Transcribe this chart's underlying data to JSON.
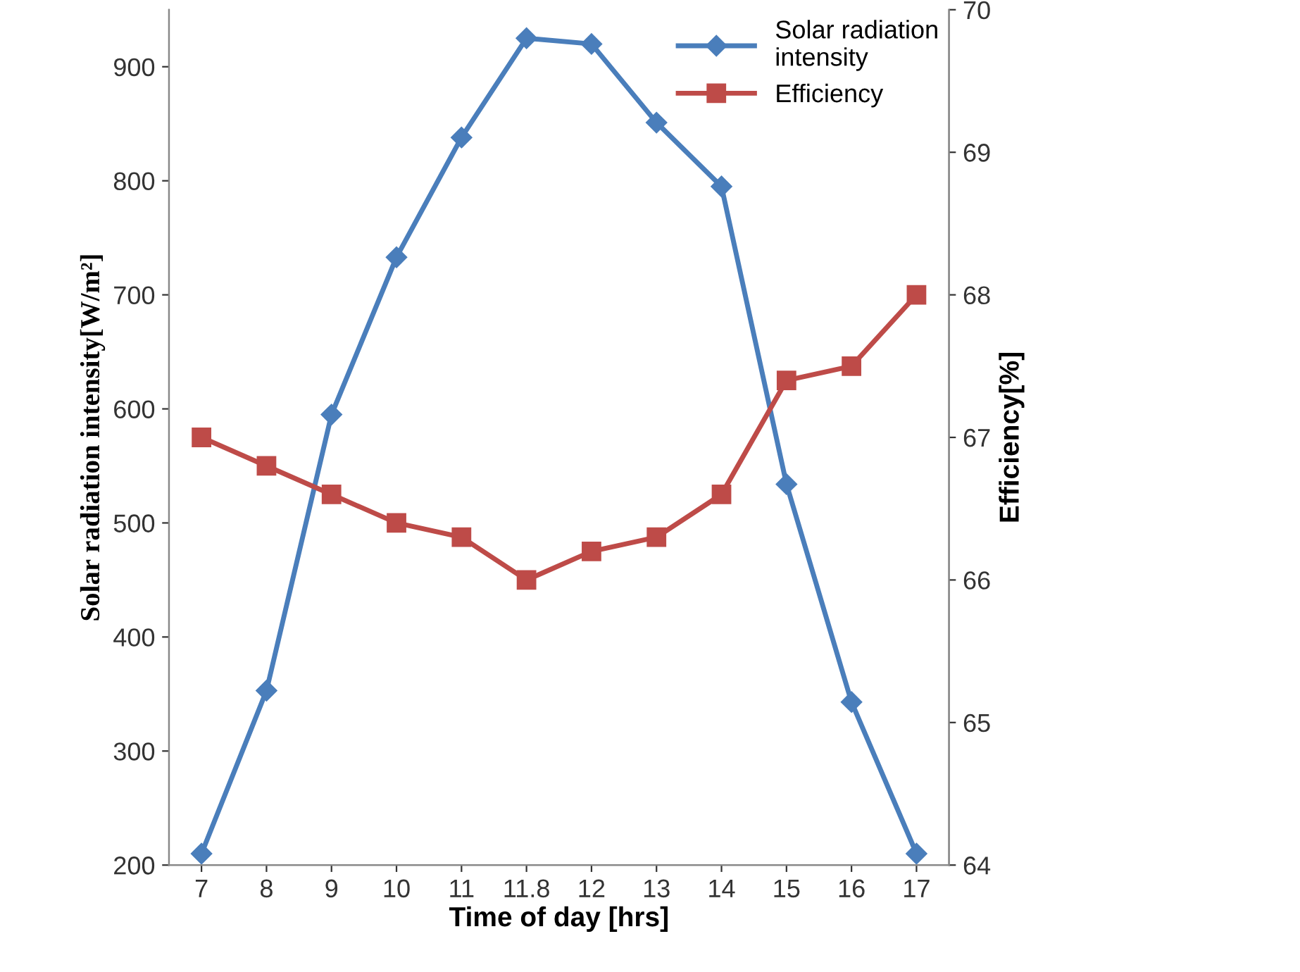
{
  "chart_data": {
    "type": "line",
    "xlabel": "Time of day [hrs]",
    "ylabel": "Solar radiation intensity[W/m²]",
    "y2label": "Efficiency[%]",
    "categories": [
      "7",
      "8",
      "9",
      "10",
      "11",
      "11.8",
      "12",
      "13",
      "14",
      "15",
      "16",
      "17"
    ],
    "series": [
      {
        "name": "Solar radiation intensity",
        "color": "#4a7ebb",
        "marker": "diamond",
        "values": [
          210,
          353,
          595,
          733,
          838,
          925,
          920,
          851,
          795,
          534,
          343,
          210
        ]
      },
      {
        "name": "Efficiency",
        "color": "#be4b48",
        "marker": "square",
        "axis": "y2",
        "values": [
          67.0,
          66.8,
          66.6,
          66.4,
          66.3,
          66.0,
          66.2,
          66.3,
          66.6,
          67.4,
          67.5,
          68.0
        ]
      }
    ],
    "ylim": [
      200,
      950
    ],
    "yticks": [
      200,
      300,
      400,
      500,
      600,
      700,
      800,
      900
    ],
    "y2lim": [
      64,
      70
    ],
    "y2ticks": [
      64,
      65,
      66,
      67,
      68,
      69,
      70
    ],
    "legend": "top right",
    "grid": false,
    "line_style": "solid"
  }
}
